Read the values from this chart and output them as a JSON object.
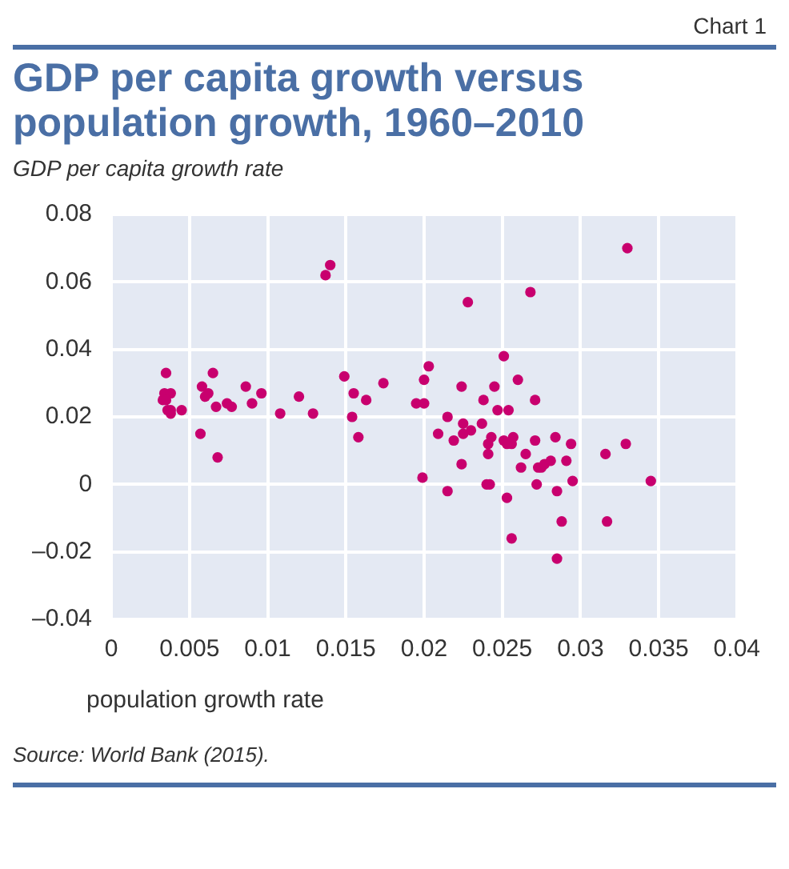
{
  "chart_data": {
    "type": "scatter",
    "title": "GDP per capita growth versus population growth, 1960–2010",
    "ylabel": "GDP per capita growth rate",
    "xlabel": "population growth rate",
    "annotations": [
      "Chart 1",
      "Source: World Bank (2015)."
    ],
    "x": [
      0.0035,
      0.0034,
      0.0038,
      0.0033,
      0.0035,
      0.0036,
      0.0038,
      0.0038,
      0.0045,
      0.0057,
      0.0058,
      0.0062,
      0.006,
      0.0065,
      0.0067,
      0.0068,
      0.0074,
      0.0077,
      0.0086,
      0.009,
      0.0096,
      0.0108,
      0.012,
      0.0129,
      0.0137,
      0.014,
      0.0149,
      0.0155,
      0.0154,
      0.0158,
      0.0163,
      0.0174,
      0.0195,
      0.02,
      0.02,
      0.0203,
      0.0199,
      0.0228,
      0.0268,
      0.033,
      0.0251,
      0.0224,
      0.0245,
      0.026,
      0.0238,
      0.0247,
      0.0254,
      0.0271,
      0.0215,
      0.0209,
      0.0219,
      0.0225,
      0.0225,
      0.023,
      0.0237,
      0.0243,
      0.0241,
      0.0241,
      0.0251,
      0.0253,
      0.0256,
      0.0257,
      0.0265,
      0.0271,
      0.0284,
      0.0294,
      0.0224,
      0.0262,
      0.0273,
      0.0275,
      0.0277,
      0.0281,
      0.0291,
      0.0316,
      0.0329,
      0.0345,
      0.0215,
      0.024,
      0.0242,
      0.0272,
      0.0295,
      0.0285,
      0.0253,
      0.0288,
      0.0317,
      0.0256,
      0.0285
    ],
    "values": [
      0.033,
      0.027,
      0.027,
      0.025,
      0.025,
      0.022,
      0.022,
      0.021,
      0.022,
      0.015,
      0.029,
      0.027,
      0.026,
      0.033,
      0.023,
      0.008,
      0.024,
      0.023,
      0.029,
      0.024,
      0.027,
      0.021,
      0.026,
      0.021,
      0.062,
      0.065,
      0.032,
      0.027,
      0.02,
      0.014,
      0.025,
      0.03,
      0.024,
      0.024,
      0.031,
      0.035,
      0.002,
      0.054,
      0.057,
      0.07,
      0.038,
      0.029,
      0.029,
      0.031,
      0.025,
      0.022,
      0.022,
      0.025,
      0.02,
      0.015,
      0.013,
      0.018,
      0.015,
      0.016,
      0.018,
      0.014,
      0.012,
      0.009,
      0.013,
      0.012,
      0.012,
      0.014,
      0.009,
      0.013,
      0.014,
      0.012,
      0.006,
      0.005,
      0.005,
      0.005,
      0.006,
      0.007,
      0.007,
      0.009,
      0.012,
      0.001,
      -0.002,
      0.0,
      0.0,
      0.0,
      0.001,
      -0.002,
      -0.004,
      -0.011,
      -0.011,
      -0.016,
      -0.022
    ],
    "color": "#c8006e",
    "marker": "circle",
    "grid": true,
    "xlim": [
      0,
      0.04
    ],
    "xticks": [
      0,
      0.005,
      0.01,
      0.015,
      0.02,
      0.025,
      0.03,
      0.035,
      0.04
    ],
    "ylim": [
      -0.04,
      0.08
    ],
    "yticks": [
      {
        "value": -0.04,
        "label": "–0.04"
      },
      {
        "value": -0.02,
        "label": "–0.02"
      },
      0,
      0.02,
      0.04,
      0.06,
      0.08
    ]
  }
}
